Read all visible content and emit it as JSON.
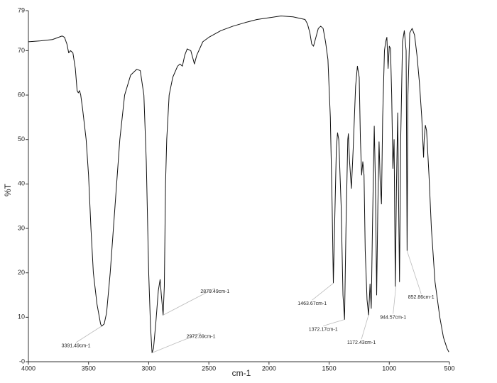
{
  "chart_data": {
    "type": "line",
    "xlabel": "cm-1",
    "ylabel": "%T",
    "color": "#111111",
    "xlim": [
      4000,
      500
    ],
    "ylim": [
      0,
      79
    ],
    "xticks": [
      4000,
      3500,
      3000,
      2500,
      2000,
      1500,
      1000,
      500
    ],
    "yticks": [
      {
        "value": 0,
        "label": "-0"
      },
      10,
      20,
      30,
      40,
      50,
      60,
      70,
      79
    ],
    "x": [
      4000,
      3900,
      3800,
      3720,
      3700,
      3680,
      3665,
      3650,
      3630,
      3610,
      3595,
      3585,
      3575,
      3565,
      3550,
      3520,
      3500,
      3480,
      3460,
      3430,
      3400,
      3391,
      3370,
      3350,
      3320,
      3280,
      3240,
      3200,
      3150,
      3100,
      3070,
      3040,
      3020,
      3000,
      2985,
      2972,
      2960,
      2940,
      2920,
      2905,
      2895,
      2880,
      2870,
      2860,
      2850,
      2830,
      2800,
      2760,
      2740,
      2720,
      2700,
      2680,
      2650,
      2630,
      2620,
      2600,
      2550,
      2500,
      2400,
      2300,
      2200,
      2100,
      2000,
      1950,
      1900,
      1800,
      1750,
      1700,
      1680,
      1660,
      1645,
      1630,
      1610,
      1590,
      1570,
      1550,
      1530,
      1510,
      1490,
      1475,
      1465,
      1455,
      1440,
      1430,
      1420,
      1400,
      1385,
      1372,
      1360,
      1345,
      1340,
      1330,
      1315,
      1300,
      1280,
      1265,
      1250,
      1240,
      1230,
      1220,
      1210,
      1200,
      1185,
      1172,
      1160,
      1150,
      1140,
      1125,
      1115,
      1105,
      1095,
      1085,
      1075,
      1065,
      1055,
      1040,
      1030,
      1020,
      1010,
      1000,
      990,
      980,
      970,
      960,
      950,
      940,
      930,
      920,
      915,
      905,
      890,
      875,
      860,
      852,
      845,
      830,
      810,
      790,
      770,
      750,
      730,
      715,
      710,
      700,
      690,
      670,
      650,
      620,
      580,
      550,
      520,
      505
    ],
    "values": [
      72,
      72.2,
      72.5,
      73.3,
      73,
      71.5,
      69.5,
      70,
      69.5,
      66,
      61,
      60.5,
      61,
      60,
      57,
      50,
      42,
      30,
      20,
      13,
      8.5,
      8,
      8.5,
      11,
      20,
      35,
      50,
      60,
      64.5,
      65.8,
      65.5,
      60,
      45,
      20,
      8,
      2,
      3,
      9,
      16,
      18.5,
      15,
      10.5,
      17,
      40,
      50,
      60,
      64,
      66.5,
      67,
      66.5,
      69,
      70.4,
      70,
      68,
      67,
      69,
      72,
      73,
      74.5,
      75.5,
      76.3,
      77,
      77.4,
      77.6,
      77.8,
      77.6,
      77.3,
      77,
      76,
      74,
      71.5,
      71,
      73,
      75,
      75.5,
      75,
      72,
      68,
      55,
      35,
      17.7,
      30,
      48,
      51.5,
      50,
      35,
      15,
      9.5,
      30,
      50,
      51.3,
      45,
      39,
      48,
      62,
      66.5,
      64,
      50,
      42,
      45,
      42,
      25,
      14,
      10.5,
      17.5,
      12,
      30,
      53,
      40,
      15,
      35,
      49.5,
      40,
      35.5,
      55,
      70,
      72,
      73,
      66,
      71,
      70.5,
      60,
      43.5,
      50,
      17,
      40,
      56,
      30,
      18,
      50,
      72,
      74.5,
      70,
      25,
      60,
      74,
      75,
      73.5,
      69,
      63,
      55,
      46,
      50,
      53.2,
      52,
      42,
      30,
      18,
      10,
      5.5,
      3,
      2.2
    ],
    "annotations": [
      {
        "text": "3391.49cm-1",
        "x": 3391.49,
        "y": 8
      },
      {
        "text": "2879.49cm-1",
        "x": 2879.49,
        "y": 10.5
      },
      {
        "text": "2972.69cm-1",
        "x": 2972.69,
        "y": 2
      },
      {
        "text": "1463.67cm-1",
        "x": 1463.67,
        "y": 17.7
      },
      {
        "text": "1372.17cm-1",
        "x": 1372.17,
        "y": 9.5
      },
      {
        "text": "1172.43cm-1",
        "x": 1172.43,
        "y": 10.5
      },
      {
        "text": "944.57cm-1",
        "x": 944.57,
        "y": 17
      },
      {
        "text": "852.86cm-1",
        "x": 852.86,
        "y": 25
      }
    ]
  }
}
